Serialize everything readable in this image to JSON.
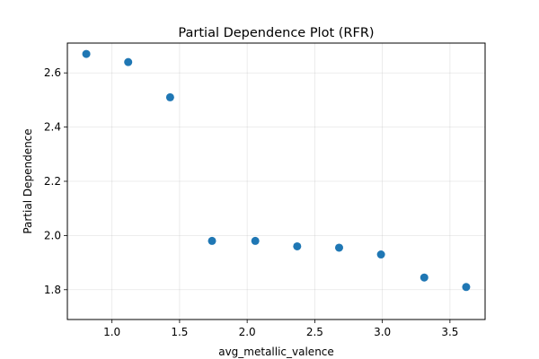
{
  "chart_data": {
    "type": "scatter",
    "title": "Partial Dependence Plot (RFR)",
    "xlabel": "avg_metallic_valence",
    "ylabel": "Partial Dependence",
    "xlim": [
      0.67,
      3.76
    ],
    "ylim": [
      1.69,
      2.71
    ],
    "xticks": [
      1.0,
      1.5,
      2.0,
      2.5,
      3.0,
      3.5
    ],
    "xtick_labels": [
      "1.0",
      "1.5",
      "2.0",
      "2.5",
      "3.0",
      "3.5"
    ],
    "yticks": [
      1.8,
      2.0,
      2.2,
      2.4,
      2.6
    ],
    "ytick_labels": [
      "1.8",
      "2.0",
      "2.2",
      "2.4",
      "2.6"
    ],
    "grid": true,
    "marker_color": "#1f77b4",
    "x": [
      0.81,
      1.12,
      1.43,
      1.74,
      2.06,
      2.37,
      2.68,
      2.99,
      3.31,
      3.62
    ],
    "y": [
      2.67,
      2.64,
      2.51,
      1.98,
      1.98,
      1.96,
      1.955,
      1.93,
      1.845,
      1.81
    ]
  }
}
